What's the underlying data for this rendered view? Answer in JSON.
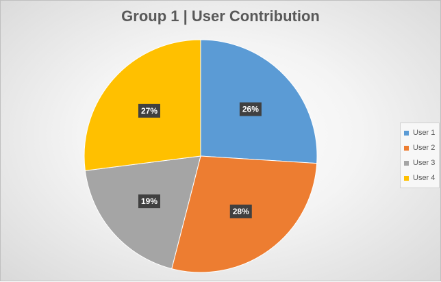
{
  "chart_data": {
    "type": "pie",
    "title": "Group 1 | User Contribution",
    "categories": [
      "User 1",
      "User 2",
      "User 3",
      "User 4"
    ],
    "values": [
      26,
      28,
      19,
      27
    ],
    "labels": [
      "26%",
      "28%",
      "19%",
      "27%"
    ],
    "colors": [
      "#5b9bd5",
      "#ed7d31",
      "#a5a5a5",
      "#ffc000"
    ],
    "legend_position": "right"
  }
}
